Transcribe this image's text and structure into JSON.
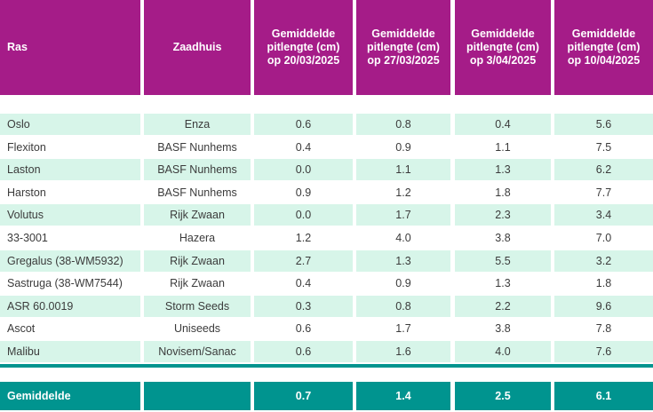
{
  "colors": {
    "header_bg": "#A51C88",
    "row_alt_bg": "#D7F5E9",
    "row_bg": "#FFFFFF",
    "accent_teal": "#00948F",
    "header_text": "#FFFFFF",
    "body_text": "#3B3B3B"
  },
  "chart_data": {
    "type": "table",
    "columns": [
      "Ras",
      "Zaadhuis",
      "Gemiddelde pitlengte (cm) op 20/03/2025",
      "Gemiddelde pitlengte (cm) op 27/03/2025",
      "Gemiddelde pitlengte (cm) op 3/04/2025",
      "Gemiddelde pitlengte (cm) op 10/04/2025"
    ],
    "rows": [
      [
        "Oslo",
        "Enza",
        "0.6",
        "0.8",
        "0.4",
        "5.6"
      ],
      [
        "Flexiton",
        "BASF Nunhems",
        "0.4",
        "0.9",
        "1.1",
        "7.5"
      ],
      [
        "Laston",
        "BASF Nunhems",
        "0.0",
        "1.1",
        "1.3",
        "6.2"
      ],
      [
        "Harston",
        "BASF Nunhems",
        "0.9",
        "1.2",
        "1.8",
        "7.7"
      ],
      [
        "Volutus",
        "Rijk Zwaan",
        "0.0",
        "1.7",
        "2.3",
        "3.4"
      ],
      [
        "33-3001",
        "Hazera",
        "1.2",
        "4.0",
        "3.8",
        "7.0"
      ],
      [
        "Gregalus (38-WM5932)",
        "Rijk Zwaan",
        "2.7",
        "1.3",
        "5.5",
        "3.2"
      ],
      [
        "Sastruga (38-WM7544)",
        "Rijk Zwaan",
        "0.4",
        "0.9",
        "1.3",
        "1.8"
      ],
      [
        "ASR 60.0019",
        "Storm Seeds",
        "0.3",
        "0.8",
        "2.2",
        "9.6"
      ],
      [
        "Ascot",
        "Uniseeds",
        "0.6",
        "1.7",
        "3.8",
        "7.8"
      ],
      [
        "Malibu",
        "Novisem/Sanac",
        "0.6",
        "1.6",
        "4.0",
        "7.6"
      ]
    ],
    "footer": [
      "Gemiddelde",
      "",
      "0.7",
      "1.4",
      "2.5",
      "6.1"
    ]
  }
}
